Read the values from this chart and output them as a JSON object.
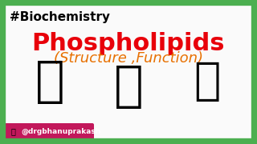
{
  "bg_color": "#ffffff",
  "border_color": "#4caf50",
  "border_width": 6,
  "hashtag_text": "#Biochemistry",
  "hashtag_color": "#000000",
  "hashtag_fontsize": 11,
  "title_text": "Phospholipids",
  "title_color": "#e8000a",
  "title_fontsize": 22,
  "subtitle_text": "(Structure ,Function)",
  "subtitle_color": "#e87000",
  "subtitle_fontsize": 13,
  "watermark_text": "@drgbhanuprakash",
  "watermark_color": "#ffffff",
  "watermark_bg": "#c2185b"
}
